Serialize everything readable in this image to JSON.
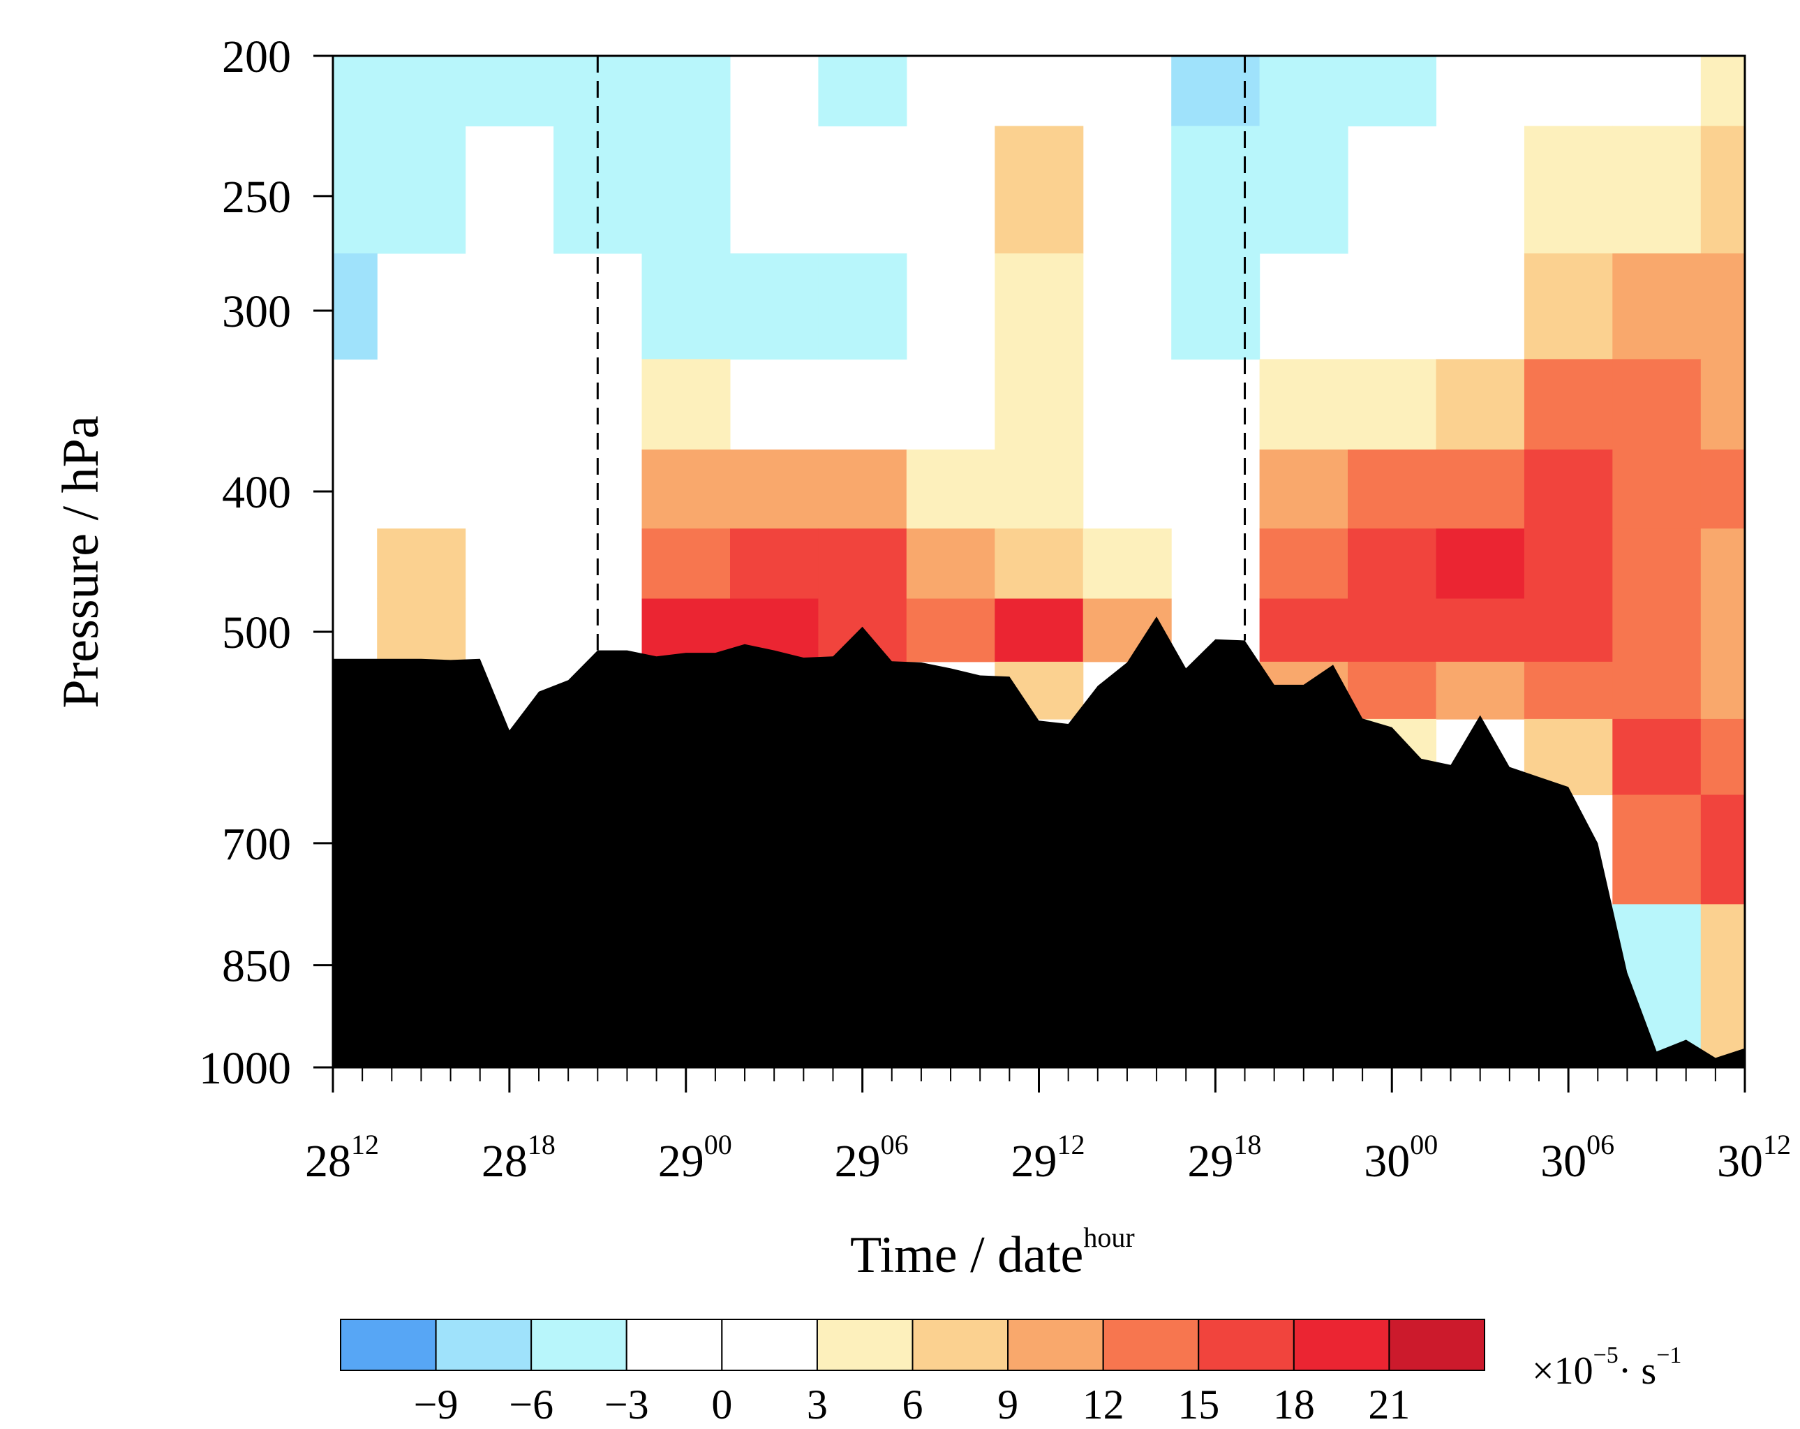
{
  "chart_data": {
    "type": "heatmap",
    "title": "",
    "xlabel": "Time / date",
    "xlabel_sup": "hour",
    "ylabel": "Pressure / hPa",
    "y_scale": "log",
    "ylim": [
      1000,
      200
    ],
    "y_ticks": [
      {
        "value": 200,
        "label": "200"
      },
      {
        "value": 250,
        "label": "250"
      },
      {
        "value": 300,
        "label": "300"
      },
      {
        "value": 400,
        "label": "400"
      },
      {
        "value": 500,
        "label": "500"
      },
      {
        "value": 700,
        "label": "700"
      },
      {
        "value": 850,
        "label": "850"
      },
      {
        "value": 1000,
        "label": "1000"
      }
    ],
    "x_range_hours": [
      0,
      48
    ],
    "x_minor_step_hours": 1,
    "x_ticks": [
      {
        "hour": 0,
        "date": "28",
        "sup": "12"
      },
      {
        "hour": 6,
        "date": "28",
        "sup": "18"
      },
      {
        "hour": 12,
        "date": "29",
        "sup": "00"
      },
      {
        "hour": 18,
        "date": "29",
        "sup": "06"
      },
      {
        "hour": 24,
        "date": "29",
        "sup": "12"
      },
      {
        "hour": 30,
        "date": "29",
        "sup": "18"
      },
      {
        "hour": 36,
        "date": "30",
        "sup": "00"
      },
      {
        "hour": 42,
        "date": "30",
        "sup": "06"
      },
      {
        "hour": 48,
        "date": "30",
        "sup": "12"
      }
    ],
    "dashed_lines_hours": [
      9,
      31
    ],
    "colorbar": {
      "levels": [
        "−9",
        "−6",
        "−3",
        "0",
        "3",
        "6",
        "9",
        "12",
        "15",
        "18",
        "21"
      ],
      "colors": [
        "#57a6f5",
        "#9fe2fb",
        "#b8f6fb",
        "#ffffff",
        "#ffffff",
        "#fdf0bc",
        "#fbd190",
        "#f9a86c",
        "#f7764f",
        "#f1443d",
        "#eb2532",
        "#cc1a2c"
      ],
      "unit": "×10",
      "unit_exp": "−5",
      "unit_tail": "· s",
      "unit_tail_exp": "−1"
    },
    "field_value_levels": [
      -9,
      -6,
      -3,
      0,
      3,
      6,
      9,
      12,
      15,
      18,
      21
    ],
    "times_hours": [
      0,
      3,
      6,
      9,
      12,
      15,
      18,
      21,
      24,
      27,
      30,
      33,
      36,
      39,
      42,
      45,
      48
    ],
    "pressure_levels": [
      200,
      250,
      300,
      350,
      400,
      450,
      500,
      550,
      600,
      700,
      850
    ],
    "divergence": [
      [
        -5,
        -6,
        -4,
        -4,
        -6,
        -2,
        -4,
        -2,
        2,
        0,
        -7,
        -5,
        -4,
        0,
        -2,
        -1,
        4
      ],
      [
        -6,
        -4,
        -2,
        -4,
        -4,
        -2,
        -3,
        0,
        7,
        0,
        -5,
        -4,
        -2,
        0,
        3,
        5,
        6
      ],
      [
        -7,
        -3,
        -1,
        -3,
        -5,
        -4,
        -4,
        -1,
        5,
        2,
        -4,
        -3,
        -2,
        -1,
        8,
        9,
        9
      ],
      [
        -3,
        -1,
        0,
        0,
        3,
        2,
        1,
        1,
        4,
        2,
        -2,
        4,
        5,
        7,
        13,
        14,
        10
      ],
      [
        0,
        0,
        0,
        0,
        11,
        11,
        9,
        5,
        3,
        1,
        -1,
        11,
        12,
        14,
        15,
        14,
        12
      ],
      [
        1,
        6,
        1,
        0,
        14,
        16,
        15,
        9,
        6,
        3,
        -2,
        13,
        16,
        18,
        15,
        13,
        11
      ],
      [
        0,
        8,
        0,
        0,
        20,
        18,
        16,
        12,
        19,
        9,
        0,
        15,
        15,
        16,
        17,
        13,
        10
      ],
      [
        0,
        0,
        0,
        0,
        0,
        0,
        0,
        0,
        6,
        0,
        0,
        10,
        12,
        11,
        12,
        13,
        11
      ],
      [
        0,
        0,
        0,
        0,
        0,
        0,
        0,
        0,
        0,
        0,
        0,
        4,
        3,
        0,
        6,
        16,
        14
      ],
      [
        0,
        0,
        0,
        0,
        0,
        0,
        0,
        0,
        0,
        0,
        0,
        0,
        0,
        0,
        0,
        14,
        17
      ],
      [
        0,
        0,
        0,
        0,
        0,
        0,
        0,
        0,
        0,
        0,
        0,
        0,
        0,
        0,
        0,
        -4,
        6
      ]
    ],
    "terrain_surface_pressure": [
      [
        0,
        522
      ],
      [
        1,
        522
      ],
      [
        2,
        522
      ],
      [
        3,
        522
      ],
      [
        4,
        523
      ],
      [
        5,
        522
      ],
      [
        6,
        585
      ],
      [
        7,
        550
      ],
      [
        8,
        540
      ],
      [
        9,
        515
      ],
      [
        10,
        515
      ],
      [
        11,
        520
      ],
      [
        12,
        517
      ],
      [
        13,
        517
      ],
      [
        14,
        510
      ],
      [
        15,
        515
      ],
      [
        16,
        521
      ],
      [
        17,
        520
      ],
      [
        18,
        496
      ],
      [
        19,
        524
      ],
      [
        20,
        525
      ],
      [
        21,
        530
      ],
      [
        22,
        536
      ],
      [
        23,
        537
      ],
      [
        24,
        576
      ],
      [
        25,
        579
      ],
      [
        26,
        545
      ],
      [
        27,
        525
      ],
      [
        28,
        488
      ],
      [
        29,
        530
      ],
      [
        30,
        506
      ],
      [
        31,
        507
      ],
      [
        32,
        544
      ],
      [
        33,
        544
      ],
      [
        34,
        527
      ],
      [
        35,
        574
      ],
      [
        36,
        582
      ],
      [
        37,
        612
      ],
      [
        38,
        618
      ],
      [
        39,
        571
      ],
      [
        40,
        620
      ],
      [
        41,
        630
      ],
      [
        42,
        640
      ],
      [
        43,
        700
      ],
      [
        44,
        860
      ],
      [
        45,
        975
      ],
      [
        46,
        957
      ],
      [
        47,
        985
      ],
      [
        48,
        970
      ]
    ]
  }
}
